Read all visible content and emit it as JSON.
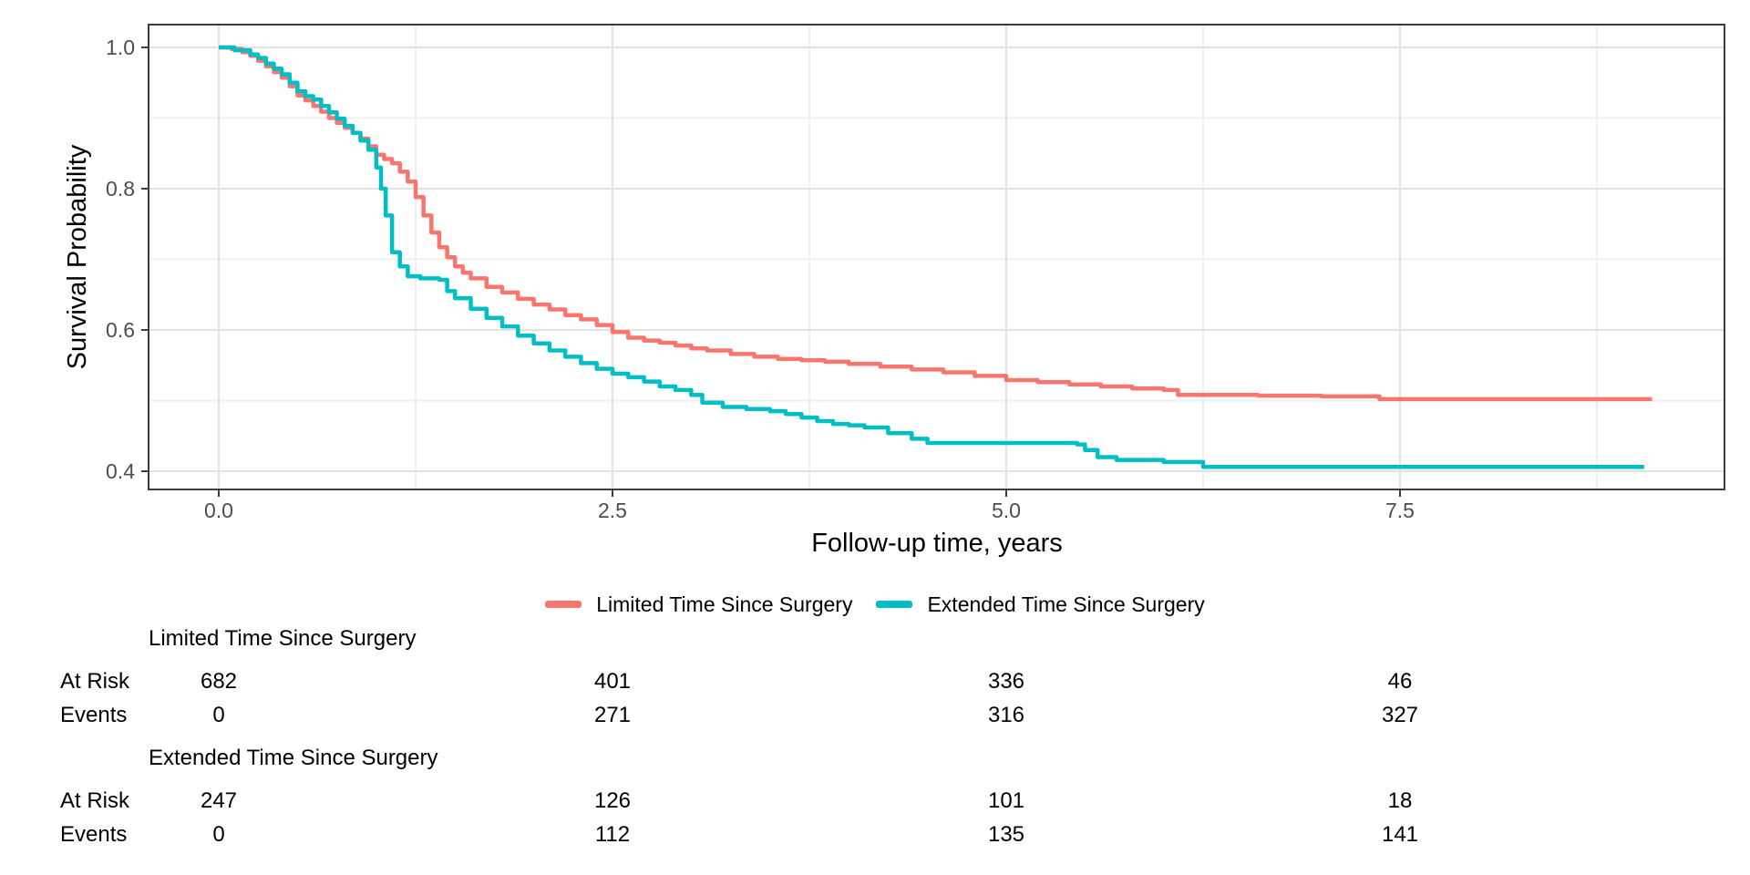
{
  "chart_data": {
    "type": "line",
    "subtype": "kaplan-meier-step-survival",
    "title": "",
    "xlabel": "Follow-up time, years",
    "ylabel": "Survival Probability",
    "x_ticks": [
      0.0,
      2.5,
      5.0,
      7.5
    ],
    "x_tick_labels": [
      "0.0",
      "2.5",
      "5.0",
      "7.5"
    ],
    "y_ticks": [
      1.0,
      0.8,
      0.6,
      0.4
    ],
    "y_tick_labels": [
      "1.0",
      "0.8",
      "0.6",
      "0.4"
    ],
    "xlim": [
      -0.455,
      9.555
    ],
    "ylim": [
      0.374,
      1.032
    ],
    "grid": true,
    "legend_position": "bottom",
    "series": [
      {
        "name": "Limited Time Since Surgery",
        "color": "#F8766D",
        "points": [
          [
            0.0,
            1.0
          ],
          [
            0.08,
            0.998
          ],
          [
            0.15,
            0.993
          ],
          [
            0.2,
            0.988
          ],
          [
            0.25,
            0.981
          ],
          [
            0.3,
            0.973
          ],
          [
            0.35,
            0.965
          ],
          [
            0.4,
            0.957
          ],
          [
            0.45,
            0.945
          ],
          [
            0.5,
            0.932
          ],
          [
            0.55,
            0.925
          ],
          [
            0.6,
            0.917
          ],
          [
            0.65,
            0.909
          ],
          [
            0.7,
            0.9
          ],
          [
            0.75,
            0.893
          ],
          [
            0.8,
            0.886
          ],
          [
            0.85,
            0.879
          ],
          [
            0.9,
            0.871
          ],
          [
            0.95,
            0.86
          ],
          [
            1.0,
            0.848
          ],
          [
            1.05,
            0.842
          ],
          [
            1.1,
            0.836
          ],
          [
            1.15,
            0.824
          ],
          [
            1.2,
            0.81
          ],
          [
            1.25,
            0.788
          ],
          [
            1.3,
            0.762
          ],
          [
            1.35,
            0.738
          ],
          [
            1.4,
            0.717
          ],
          [
            1.45,
            0.703
          ],
          [
            1.5,
            0.69
          ],
          [
            1.55,
            0.681
          ],
          [
            1.6,
            0.673
          ],
          [
            1.7,
            0.661
          ],
          [
            1.8,
            0.653
          ],
          [
            1.9,
            0.644
          ],
          [
            2.0,
            0.636
          ],
          [
            2.1,
            0.629
          ],
          [
            2.2,
            0.621
          ],
          [
            2.3,
            0.615
          ],
          [
            2.4,
            0.607
          ],
          [
            2.5,
            0.597
          ],
          [
            2.6,
            0.589
          ],
          [
            2.7,
            0.585
          ],
          [
            2.8,
            0.582
          ],
          [
            2.9,
            0.578
          ],
          [
            3.0,
            0.574
          ],
          [
            3.1,
            0.571
          ],
          [
            3.25,
            0.566
          ],
          [
            3.4,
            0.562
          ],
          [
            3.55,
            0.559
          ],
          [
            3.7,
            0.557
          ],
          [
            3.85,
            0.555
          ],
          [
            4.0,
            0.552
          ],
          [
            4.2,
            0.548
          ],
          [
            4.4,
            0.544
          ],
          [
            4.6,
            0.54
          ],
          [
            4.8,
            0.535
          ],
          [
            5.0,
            0.529
          ],
          [
            5.2,
            0.526
          ],
          [
            5.4,
            0.523
          ],
          [
            5.6,
            0.52
          ],
          [
            5.8,
            0.517
          ],
          [
            6.0,
            0.515
          ],
          [
            6.09,
            0.508
          ],
          [
            6.6,
            0.507
          ],
          [
            7.0,
            0.506
          ],
          [
            7.37,
            0.502
          ],
          [
            9.1,
            0.502
          ]
        ]
      },
      {
        "name": "Extended Time Since Surgery",
        "color": "#00BFC4",
        "points": [
          [
            0.0,
            1.0
          ],
          [
            0.1,
            0.996
          ],
          [
            0.2,
            0.99
          ],
          [
            0.25,
            0.985
          ],
          [
            0.3,
            0.977
          ],
          [
            0.35,
            0.97
          ],
          [
            0.4,
            0.962
          ],
          [
            0.45,
            0.95
          ],
          [
            0.5,
            0.938
          ],
          [
            0.55,
            0.931
          ],
          [
            0.6,
            0.926
          ],
          [
            0.65,
            0.917
          ],
          [
            0.7,
            0.908
          ],
          [
            0.75,
            0.899
          ],
          [
            0.8,
            0.889
          ],
          [
            0.85,
            0.879
          ],
          [
            0.9,
            0.868
          ],
          [
            0.95,
            0.855
          ],
          [
            1.0,
            0.83
          ],
          [
            1.03,
            0.8
          ],
          [
            1.06,
            0.762
          ],
          [
            1.1,
            0.71
          ],
          [
            1.15,
            0.69
          ],
          [
            1.2,
            0.676
          ],
          [
            1.28,
            0.673
          ],
          [
            1.4,
            0.671
          ],
          [
            1.45,
            0.655
          ],
          [
            1.5,
            0.645
          ],
          [
            1.6,
            0.63
          ],
          [
            1.7,
            0.617
          ],
          [
            1.8,
            0.605
          ],
          [
            1.9,
            0.592
          ],
          [
            2.0,
            0.581
          ],
          [
            2.1,
            0.571
          ],
          [
            2.2,
            0.562
          ],
          [
            2.3,
            0.553
          ],
          [
            2.4,
            0.545
          ],
          [
            2.5,
            0.538
          ],
          [
            2.6,
            0.533
          ],
          [
            2.7,
            0.527
          ],
          [
            2.8,
            0.52
          ],
          [
            2.9,
            0.515
          ],
          [
            3.0,
            0.508
          ],
          [
            3.07,
            0.497
          ],
          [
            3.2,
            0.491
          ],
          [
            3.35,
            0.488
          ],
          [
            3.5,
            0.485
          ],
          [
            3.6,
            0.481
          ],
          [
            3.7,
            0.476
          ],
          [
            3.8,
            0.471
          ],
          [
            3.9,
            0.467
          ],
          [
            4.0,
            0.465
          ],
          [
            4.1,
            0.462
          ],
          [
            4.25,
            0.454
          ],
          [
            4.4,
            0.446
          ],
          [
            4.5,
            0.44
          ],
          [
            5.45,
            0.438
          ],
          [
            5.5,
            0.43
          ],
          [
            5.58,
            0.42
          ],
          [
            5.7,
            0.416
          ],
          [
            6.0,
            0.413
          ],
          [
            6.25,
            0.406
          ],
          [
            9.05,
            0.406
          ]
        ]
      }
    ]
  },
  "axis": {
    "xlabel": "Follow-up time, years",
    "ylabel": "Survival Probability",
    "x_tick_labels": [
      "0.0",
      "2.5",
      "5.0",
      "7.5"
    ],
    "y_tick_labels": [
      "1.0",
      "0.8",
      "0.6",
      "0.4"
    ]
  },
  "legend": {
    "items": [
      {
        "label": "Limited Time Since Surgery",
        "color": "#F8766D"
      },
      {
        "label": "Extended Time Since Surgery",
        "color": "#00BFC4"
      }
    ]
  },
  "risk_table": {
    "groups": [
      {
        "title": "Limited Time Since Surgery",
        "rows": [
          {
            "label": "At Risk",
            "values": [
              "682",
              "401",
              "336",
              "46"
            ]
          },
          {
            "label": "Events",
            "values": [
              "0",
              "271",
              "316",
              "327"
            ]
          }
        ]
      },
      {
        "title": "Extended Time Since Surgery",
        "rows": [
          {
            "label": "At Risk",
            "values": [
              "247",
              "126",
              "101",
              "18"
            ]
          },
          {
            "label": "Events",
            "values": [
              "0",
              "112",
              "135",
              "141"
            ]
          }
        ]
      }
    ]
  },
  "colors": {
    "series_limited": "#F8766D",
    "series_extended": "#00BFC4",
    "grid_major": "#e2e2e2",
    "grid_minor": "#efefef",
    "panel_border": "#3c3c3c",
    "tick_text": "#4d4d4d",
    "text": "#000000",
    "background": "#ffffff"
  }
}
